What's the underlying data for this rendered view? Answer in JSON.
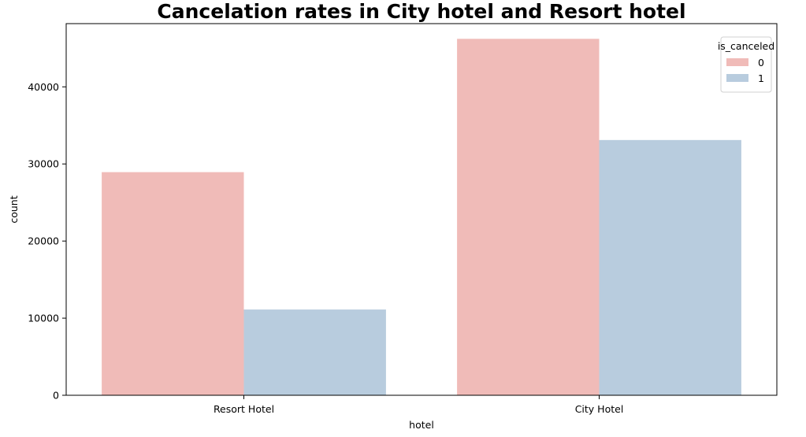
{
  "chart_data": {
    "type": "bar",
    "title": "Cancelation rates in City hotel and Resort hotel",
    "xlabel": "hotel",
    "ylabel": "count",
    "categories": [
      "Resort Hotel",
      "City Hotel"
    ],
    "series": [
      {
        "name": "0",
        "values": [
          28938,
          46228
        ],
        "color": "#f0bbb8"
      },
      {
        "name": "1",
        "values": [
          11122,
          33102
        ],
        "color": "#b8ccde"
      }
    ],
    "ylim": [
      0,
      48200
    ],
    "yticks": [
      0,
      10000,
      20000,
      30000,
      40000
    ],
    "legend": {
      "title": "is_canceled",
      "placement": "top-right"
    },
    "grid": false
  }
}
